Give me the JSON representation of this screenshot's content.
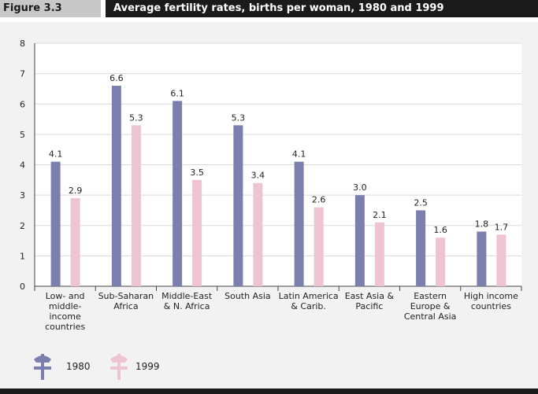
{
  "figure_label": "Figure 3.3",
  "title": "Average fertility rates, births per woman, 1980 and 1999",
  "colors": {
    "series_1980": "#7b7fae",
    "series_1999": "#efc4d2",
    "title_bar": "#1a1a1a",
    "figure_box": "#c8c8c8",
    "panel": "#f2f2f2"
  },
  "chart_data": {
    "type": "bar",
    "title": "Average fertility rates, births per woman, 1980 and 1999",
    "xlabel": "",
    "ylabel": "",
    "ylim": [
      0,
      8
    ],
    "yticks": [
      "0",
      "1",
      "2",
      "3",
      "4",
      "5",
      "6",
      "7",
      "8"
    ],
    "grid": true,
    "legend_position": "bottom-left",
    "categories": [
      [
        "Low- and",
        "middle-",
        "income",
        "countries"
      ],
      [
        "Sub-Saharan",
        "Africa"
      ],
      [
        "Middle-East",
        "& N. Africa"
      ],
      [
        "South Asia"
      ],
      [
        "Latin America",
        "& Carib."
      ],
      [
        "East Asia &",
        "Pacific"
      ],
      [
        "Eastern",
        "Europe &",
        "Central Asia"
      ],
      [
        "High income",
        "countries"
      ]
    ],
    "series": [
      {
        "name": "1980",
        "color": "#7b7fae",
        "values": [
          4.1,
          6.6,
          6.1,
          5.3,
          4.1,
          3.0,
          2.5,
          1.8
        ],
        "labels": [
          "4.1",
          "6.6",
          "6.1",
          "5.3",
          "4.1",
          "3.0",
          "2.5",
          "1.8"
        ]
      },
      {
        "name": "1999",
        "color": "#efc4d2",
        "values": [
          2.9,
          5.3,
          3.5,
          3.4,
          2.6,
          2.1,
          1.6,
          1.7
        ],
        "labels": [
          "2.9",
          "5.3",
          "3.5",
          "3.4",
          "2.6",
          "2.1",
          "1.6",
          "1.7"
        ]
      }
    ]
  }
}
